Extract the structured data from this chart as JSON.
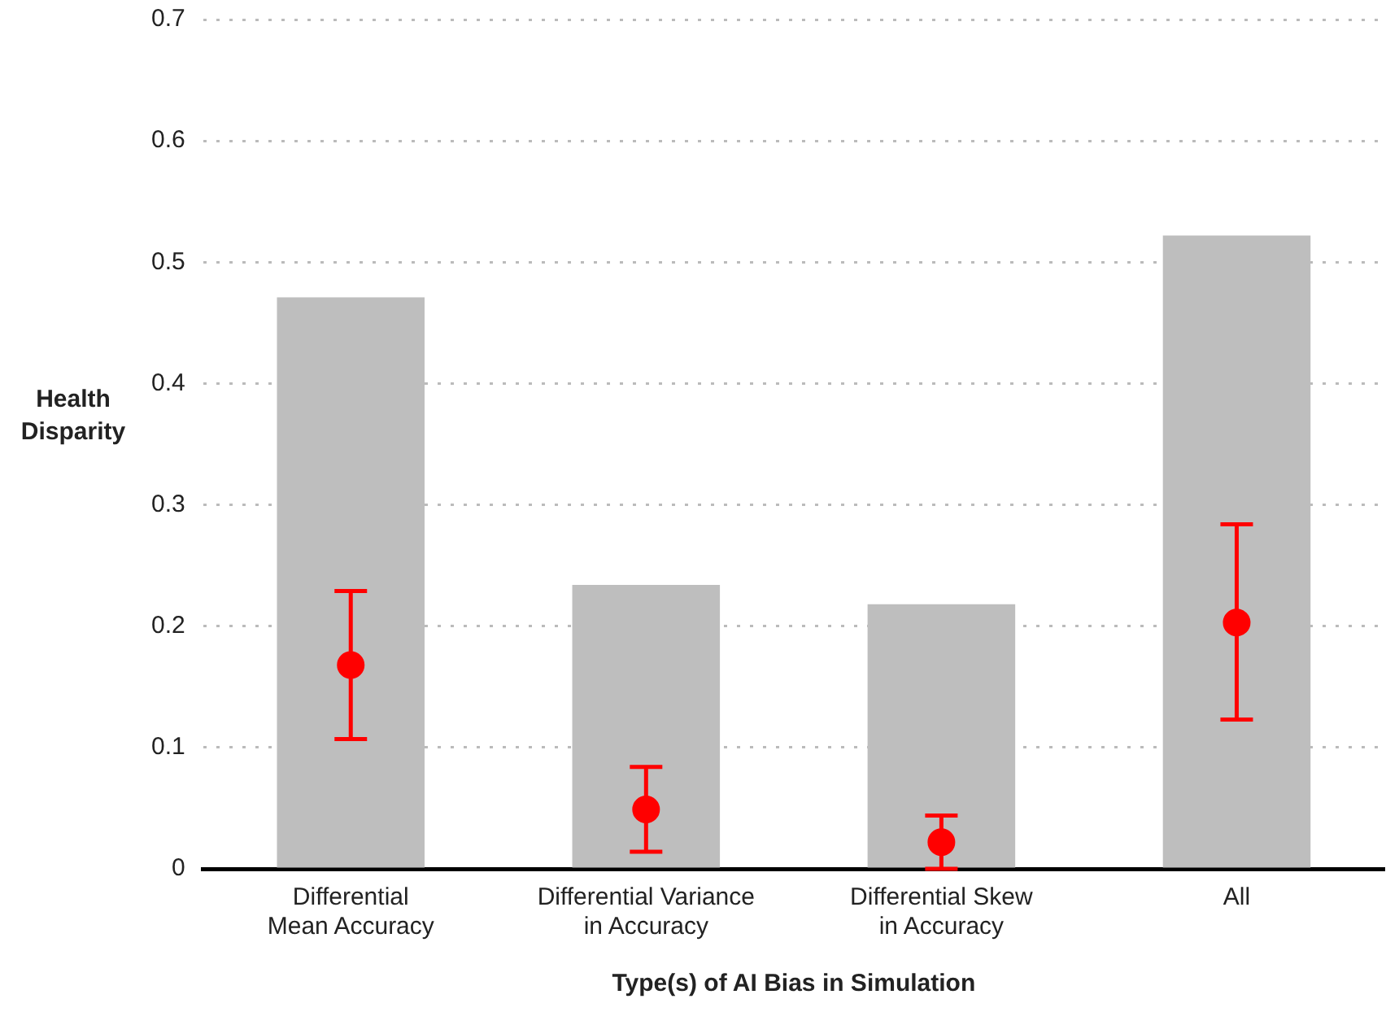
{
  "chart_data": {
    "type": "bar",
    "xlabel": "Type(s) of AI Bias in Simulation",
    "ylabel": "Health\nDisparity",
    "categories": [
      "Differential\nMean Accuracy",
      "Differential Variance\nin Accuracy",
      "Differential Skew\nin Accuracy",
      "All"
    ],
    "series": [
      {
        "color": "#bebebe",
        "values": [
          0.471,
          0.234,
          0.218,
          0.522
        ]
      },
      {
        "type": "scatter",
        "color": "#ff0000",
        "x": [
          "Differential\nMean Accuracy",
          "Differential Variance\nin Accuracy",
          "Differential Skew\nin Accuracy",
          "All"
        ],
        "values": [
          0.168,
          0.049,
          0.022,
          0.203
        ],
        "errors": [
          [
            0.107,
            0.229
          ],
          [
            0.014,
            0.084
          ],
          [
            0.0,
            0.044
          ],
          [
            0.123,
            0.284
          ]
        ]
      }
    ],
    "ylim": [
      0,
      0.7
    ],
    "yticks": [
      0,
      0.1,
      0.2,
      0.3,
      0.4,
      0.5,
      0.6,
      0.7
    ],
    "grid": "y",
    "legend": false,
    "marker": "circle"
  }
}
